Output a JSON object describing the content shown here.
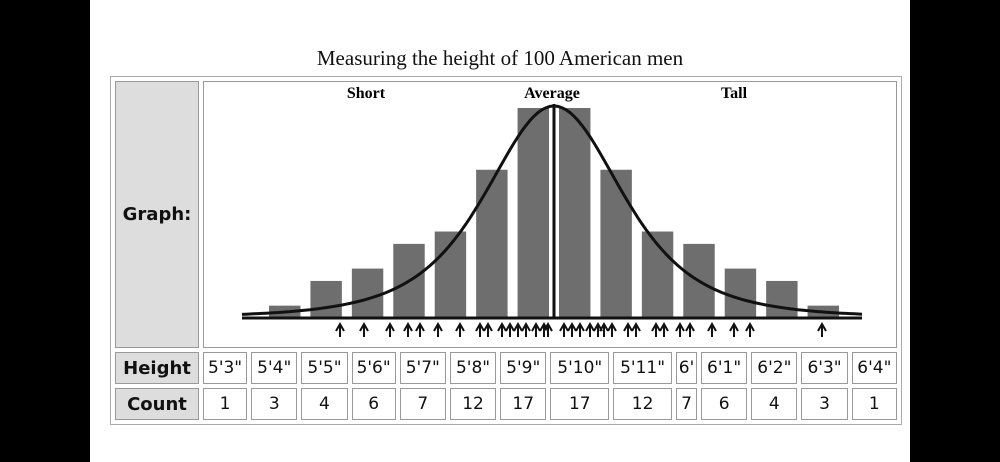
{
  "title": "Measuring the height of 100 American men",
  "graph": {
    "label": "Graph:",
    "short": "Short",
    "average": "Average",
    "tall": "Tall"
  },
  "table": {
    "height_label": "Height",
    "count_label": "Count",
    "heights": [
      "5'3\"",
      "5'4\"",
      "5'5\"",
      "5'6\"",
      "5'7\"",
      "5'8\"",
      "5'9\"",
      "5'10\"",
      "5'11\"",
      "6'",
      "6'1\"",
      "6'2\"",
      "6'3\"",
      "6'4\""
    ],
    "counts": [
      1,
      3,
      4,
      6,
      7,
      12,
      17,
      17,
      12,
      7,
      6,
      4,
      3,
      1
    ]
  }
}
